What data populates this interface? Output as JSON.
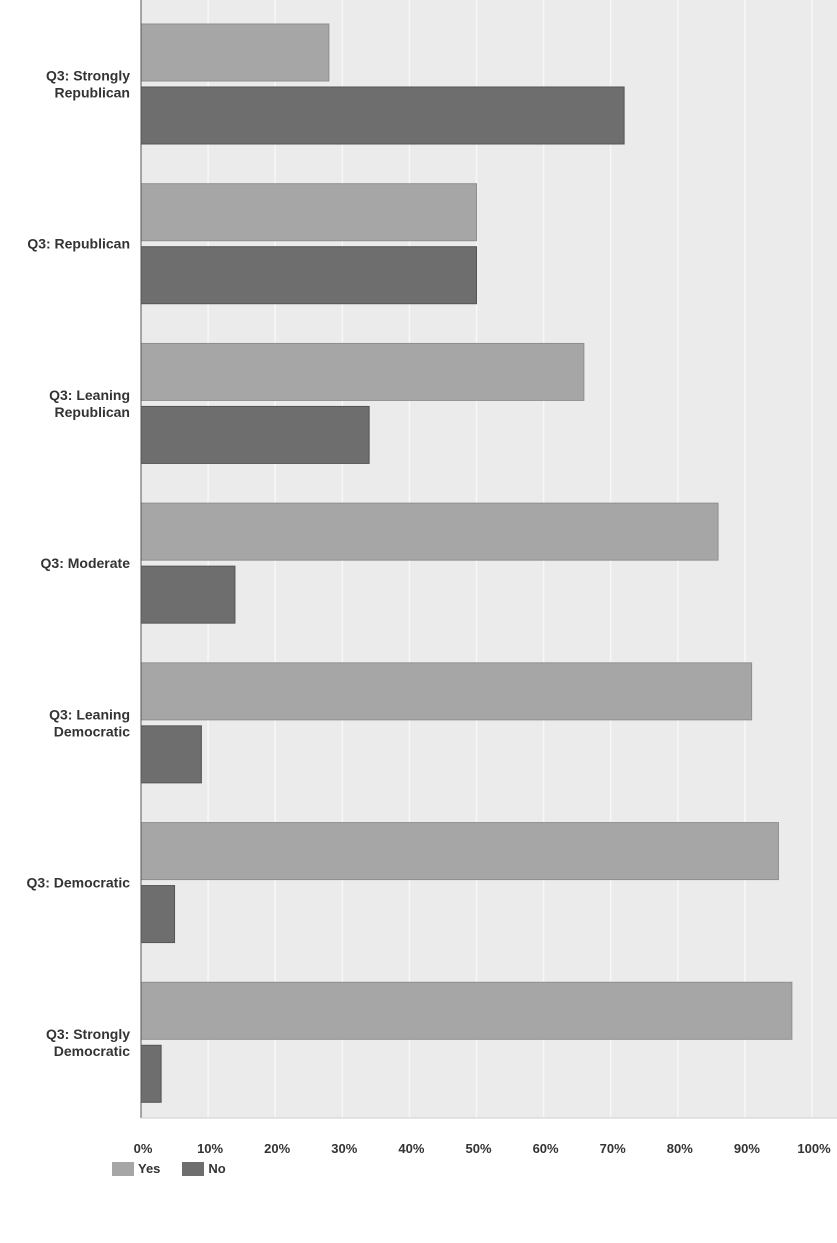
{
  "chart_data": {
    "type": "bar",
    "orientation": "horizontal",
    "categories": [
      [
        "Q3: Strongly",
        "Republican"
      ],
      [
        "Q3: Republican"
      ],
      [
        "Q3: Leaning",
        "Republican"
      ],
      [
        "Q3: Moderate"
      ],
      [
        "Q3: Leaning",
        "Democratic"
      ],
      [
        "Q3: Democratic"
      ],
      [
        "Q3: Strongly",
        "Democratic"
      ]
    ],
    "series": [
      {
        "name": "Yes",
        "color": "#a6a6a6",
        "values": [
          28,
          50,
          66,
          86,
          91,
          95,
          97
        ]
      },
      {
        "name": "No",
        "color": "#6e6e6e",
        "values": [
          72,
          50,
          34,
          14,
          9,
          5,
          3
        ]
      }
    ],
    "xlim": [
      0,
      100
    ],
    "xticks": [
      "0%",
      "10%",
      "20%",
      "30%",
      "40%",
      "50%",
      "60%",
      "70%",
      "80%",
      "90%",
      "100%"
    ],
    "grid": true,
    "legend_position": "bottom-left"
  },
  "legend": {
    "yes_label": "Yes",
    "no_label": "No"
  }
}
